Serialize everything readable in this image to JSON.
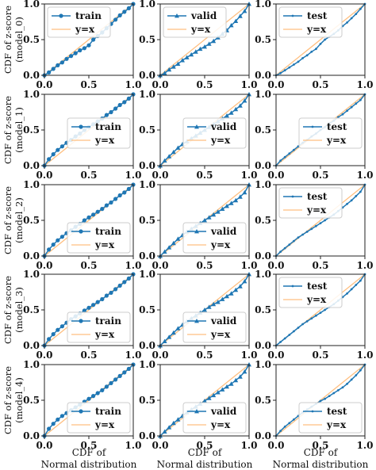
{
  "colors": {
    "series": "#1f77b4",
    "identity": "#ffbf80",
    "frame": "#222222",
    "legend_border": "#cccccc"
  },
  "axis_ticks": [
    "0.0",
    "0.5",
    "1.0"
  ],
  "xlabel_lines": [
    "CDF of",
    "Normal distribution"
  ],
  "row_ylabels": [
    [
      "CDF of z-score",
      "(model_0)"
    ],
    [
      "CDF of z-score",
      "(model_1)"
    ],
    [
      "CDF of z-score",
      "(model_2)"
    ],
    [
      "CDF of z-score",
      "(model_3)"
    ],
    [
      "CDF of z-score",
      "(model_4)"
    ]
  ],
  "chart_data": {
    "type": "line",
    "layout": "5 rows (model_0..model_4) x 3 columns (train, valid, test)",
    "xlim": [
      0,
      1
    ],
    "ylim": [
      0,
      1
    ],
    "xticks": [
      0.0,
      0.5,
      1.0
    ],
    "yticks": [
      0.0,
      0.5,
      1.0
    ],
    "reference_line": {
      "label": "y=x",
      "x": [
        0,
        1
      ],
      "y": [
        0,
        1
      ]
    },
    "columns": [
      {
        "series": "train",
        "marker": "circle"
      },
      {
        "series": "valid",
        "marker": "triangle"
      },
      {
        "series": "test",
        "marker": "small-dot"
      }
    ],
    "x": [
      0,
      0.05,
      0.1,
      0.15,
      0.2,
      0.25,
      0.3,
      0.35,
      0.4,
      0.45,
      0.5,
      0.55,
      0.6,
      0.65,
      0.7,
      0.75,
      0.8,
      0.85,
      0.9,
      0.95,
      1
    ],
    "subplots": [
      {
        "model": "model_0",
        "split": "train",
        "legend": "upper-left",
        "y": [
          0.0,
          0.04,
          0.09,
          0.14,
          0.18,
          0.23,
          0.27,
          0.31,
          0.35,
          0.38,
          0.42,
          0.5,
          0.55,
          0.6,
          0.66,
          0.72,
          0.78,
          0.84,
          0.89,
          0.94,
          1.0
        ]
      },
      {
        "model": "model_0",
        "split": "valid",
        "legend": "upper-left",
        "y": [
          0.0,
          0.03,
          0.08,
          0.12,
          0.16,
          0.21,
          0.25,
          0.29,
          0.33,
          0.37,
          0.4,
          0.44,
          0.48,
          0.53,
          0.58,
          0.63,
          0.7,
          0.76,
          0.83,
          0.9,
          1.0
        ]
      },
      {
        "model": "model_0",
        "split": "test",
        "legend": "upper-left",
        "y": [
          0.0,
          0.03,
          0.07,
          0.11,
          0.15,
          0.19,
          0.24,
          0.28,
          0.33,
          0.37,
          0.44,
          0.5,
          0.54,
          0.58,
          0.63,
          0.69,
          0.74,
          0.8,
          0.86,
          0.93,
          1.0
        ]
      },
      {
        "model": "model_1",
        "split": "train",
        "legend": "center-right",
        "y": [
          0.0,
          0.09,
          0.16,
          0.22,
          0.27,
          0.32,
          0.36,
          0.41,
          0.45,
          0.5,
          0.54,
          0.58,
          0.62,
          0.66,
          0.71,
          0.75,
          0.8,
          0.85,
          0.89,
          0.94,
          1.0
        ]
      },
      {
        "model": "model_1",
        "split": "valid",
        "legend": "center-right",
        "y": [
          0.0,
          0.07,
          0.13,
          0.19,
          0.25,
          0.3,
          0.34,
          0.38,
          0.42,
          0.46,
          0.5,
          0.54,
          0.58,
          0.62,
          0.66,
          0.7,
          0.74,
          0.79,
          0.84,
          0.91,
          1.0
        ]
      },
      {
        "model": "model_1",
        "split": "test",
        "legend": "center-right",
        "y": [
          0.0,
          0.07,
          0.12,
          0.17,
          0.22,
          0.27,
          0.32,
          0.36,
          0.41,
          0.45,
          0.5,
          0.54,
          0.59,
          0.63,
          0.68,
          0.72,
          0.77,
          0.82,
          0.87,
          0.92,
          1.0
        ]
      },
      {
        "model": "model_2",
        "split": "train",
        "legend": "lower-right",
        "y": [
          0.0,
          0.09,
          0.16,
          0.22,
          0.27,
          0.32,
          0.36,
          0.41,
          0.45,
          0.5,
          0.54,
          0.58,
          0.62,
          0.66,
          0.71,
          0.75,
          0.8,
          0.85,
          0.89,
          0.94,
          1.0
        ]
      },
      {
        "model": "model_2",
        "split": "valid",
        "legend": "lower-right",
        "y": [
          0.0,
          0.06,
          0.12,
          0.18,
          0.24,
          0.29,
          0.34,
          0.38,
          0.42,
          0.46,
          0.5,
          0.54,
          0.58,
          0.62,
          0.66,
          0.7,
          0.74,
          0.78,
          0.83,
          0.89,
          1.0
        ]
      },
      {
        "model": "model_2",
        "split": "test",
        "legend": "upper-left",
        "y": [
          0.0,
          0.06,
          0.11,
          0.16,
          0.21,
          0.26,
          0.3,
          0.34,
          0.38,
          0.42,
          0.46,
          0.5,
          0.54,
          0.58,
          0.63,
          0.68,
          0.73,
          0.78,
          0.84,
          0.9,
          1.0
        ]
      },
      {
        "model": "model_3",
        "split": "train",
        "legend": "lower-right",
        "y": [
          0.0,
          0.09,
          0.16,
          0.22,
          0.27,
          0.32,
          0.37,
          0.41,
          0.45,
          0.49,
          0.53,
          0.57,
          0.61,
          0.65,
          0.7,
          0.74,
          0.79,
          0.84,
          0.89,
          0.94,
          1.0
        ]
      },
      {
        "model": "model_3",
        "split": "valid",
        "legend": "lower-right",
        "y": [
          0.0,
          0.06,
          0.12,
          0.18,
          0.24,
          0.29,
          0.34,
          0.38,
          0.42,
          0.46,
          0.5,
          0.54,
          0.58,
          0.61,
          0.65,
          0.69,
          0.73,
          0.78,
          0.83,
          0.9,
          1.0
        ]
      },
      {
        "model": "model_3",
        "split": "test",
        "legend": "upper-left",
        "y": [
          0.0,
          0.05,
          0.1,
          0.15,
          0.2,
          0.25,
          0.3,
          0.34,
          0.38,
          0.42,
          0.46,
          0.5,
          0.54,
          0.58,
          0.63,
          0.68,
          0.73,
          0.79,
          0.85,
          0.91,
          1.0
        ]
      },
      {
        "model": "model_4",
        "split": "train",
        "legend": "lower-right",
        "y": [
          0.0,
          0.1,
          0.17,
          0.23,
          0.28,
          0.32,
          0.36,
          0.4,
          0.44,
          0.48,
          0.52,
          0.56,
          0.6,
          0.64,
          0.69,
          0.74,
          0.79,
          0.84,
          0.89,
          0.94,
          1.0
        ]
      },
      {
        "model": "model_4",
        "split": "valid",
        "legend": "lower-right",
        "y": [
          0.0,
          0.06,
          0.12,
          0.18,
          0.23,
          0.28,
          0.33,
          0.37,
          0.41,
          0.45,
          0.49,
          0.53,
          0.57,
          0.61,
          0.65,
          0.69,
          0.73,
          0.78,
          0.83,
          0.9,
          1.0
        ]
      },
      {
        "model": "model_4",
        "split": "test",
        "legend": "lower-right",
        "y": [
          0.0,
          0.07,
          0.13,
          0.18,
          0.23,
          0.28,
          0.33,
          0.37,
          0.41,
          0.45,
          0.49,
          0.52,
          0.56,
          0.6,
          0.64,
          0.68,
          0.73,
          0.79,
          0.85,
          0.92,
          1.0
        ]
      }
    ]
  }
}
